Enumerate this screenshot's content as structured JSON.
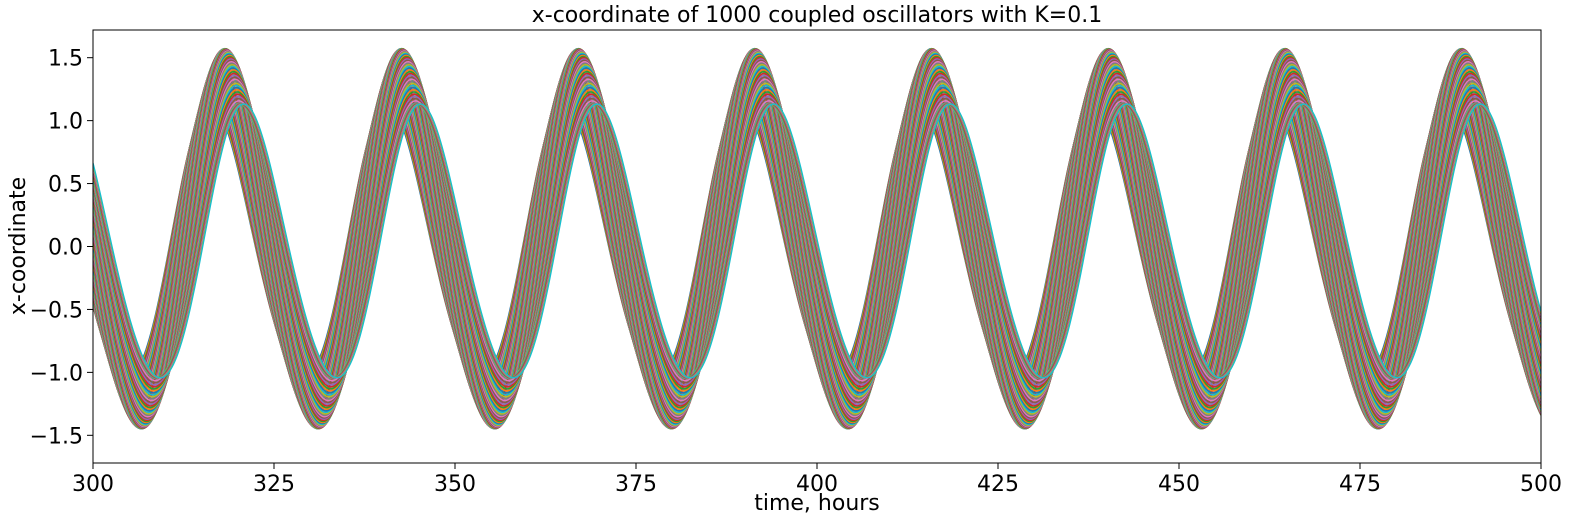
{
  "chart_data": {
    "type": "line",
    "title": "x-coordinate of 1000 coupled oscillators with K=0.1",
    "xlabel": "time, hours",
    "ylabel": "x-coordinate",
    "xlim": [
      300,
      500
    ],
    "ylim": [
      -1.72,
      1.72
    ],
    "x_ticks": [
      300,
      325,
      350,
      375,
      400,
      425,
      450,
      475,
      500
    ],
    "x_tick_labels": [
      "300",
      "325",
      "350",
      "375",
      "400",
      "425",
      "450",
      "475",
      "500"
    ],
    "y_ticks": [
      -1.5,
      -1.0,
      -0.5,
      0.0,
      0.5,
      1.0,
      1.5
    ],
    "y_tick_labels": [
      "−1.5",
      "−1.0",
      "−0.5",
      "0.0",
      "0.5",
      "1.0",
      "1.5"
    ],
    "grid": false,
    "legend": "none",
    "oscillator_count": 1000,
    "period_hours": 24.4,
    "amplitude": 1.55,
    "phase_spread_hours": 4.6,
    "series_colors": [
      "#1f77b4",
      "#ff7f0e",
      "#2ca02c",
      "#d62728",
      "#9467bd",
      "#8c564b",
      "#e377c2",
      "#7f7f7f",
      "#bcbd22",
      "#17becf"
    ]
  }
}
